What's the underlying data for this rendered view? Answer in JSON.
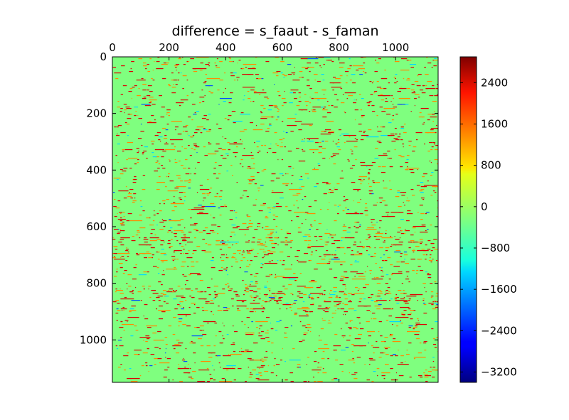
{
  "chart_data": {
    "type": "heatmap",
    "title": "difference = s_faaut - s_faman",
    "xlabel": "",
    "ylabel": "",
    "x_ticks": [
      "0",
      "200",
      "400",
      "600",
      "800",
      "1000"
    ],
    "x_tick_values": [
      0,
      200,
      400,
      600,
      800,
      1000
    ],
    "y_ticks": [
      "0",
      "200",
      "400",
      "600",
      "800",
      "1000"
    ],
    "y_tick_values": [
      0,
      200,
      400,
      600,
      800,
      1000
    ],
    "xlim": [
      0,
      1150
    ],
    "ylim": [
      1150,
      0
    ],
    "x_axis_position": "top",
    "colormap": "jet",
    "colorbar": {
      "vmin": -3400,
      "vmax": 2900,
      "ticks": [
        "2400",
        "1600",
        "800",
        "0",
        "−800",
        "−1600",
        "−2400",
        "−3200"
      ],
      "tick_values": [
        2400,
        1600,
        800,
        0,
        -800,
        -1600,
        -2400,
        -3200
      ]
    },
    "background_value": 0,
    "grid": false
  },
  "colors": {
    "background_green": "#7fff7f",
    "positive_red": "#e00000",
    "positive_orange": "#ff8a00",
    "negative_cyan": "#00d8ff",
    "negative_blue": "#0050ff"
  }
}
